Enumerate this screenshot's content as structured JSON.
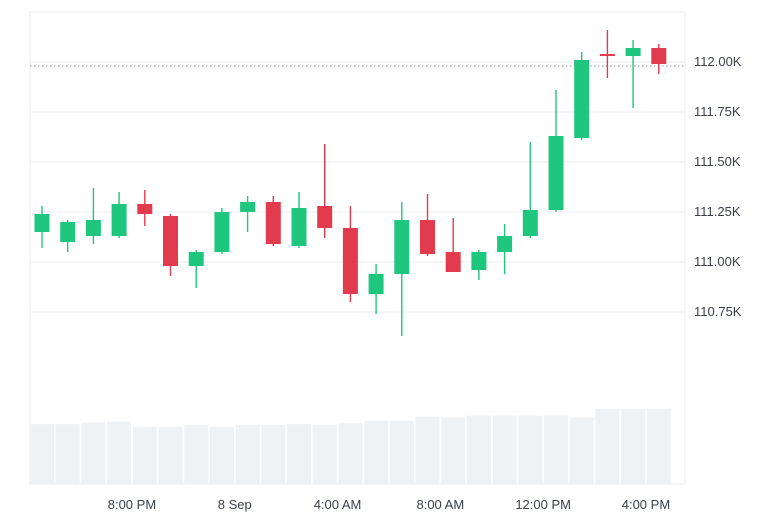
{
  "chart_data": {
    "type": "candlestick",
    "price_unit_suffix": "K",
    "y_ticks": [
      110.75,
      111.0,
      111.25,
      111.5,
      111.75,
      112.0
    ],
    "y_tick_labels": [
      "110.75K",
      "111.00K",
      "111.25K",
      "111.50K",
      "111.75K",
      "112.00K"
    ],
    "ylim": [
      110.3,
      112.25
    ],
    "x_tick_labels": [
      "8:00 PM",
      "8 Sep",
      "4:00 AM",
      "8:00 AM",
      "12:00 PM",
      "4:00 PM"
    ],
    "x_tick_candle_index": [
      3.5,
      7.5,
      11.5,
      15.5,
      19.5,
      23.5
    ],
    "reference_price": 111.98,
    "colors": {
      "up": "#1fc77e",
      "down": "#e23b4e",
      "volume": "#eef2f5",
      "grid": "#eceef1",
      "reference_line": "#8c939c"
    },
    "candles": [
      {
        "o": 111.15,
        "h": 111.28,
        "l": 111.07,
        "c": 111.24
      },
      {
        "o": 111.1,
        "h": 111.21,
        "l": 111.05,
        "c": 111.2
      },
      {
        "o": 111.13,
        "h": 111.37,
        "l": 111.09,
        "c": 111.21
      },
      {
        "o": 111.13,
        "h": 111.35,
        "l": 111.12,
        "c": 111.29
      },
      {
        "o": 111.29,
        "h": 111.36,
        "l": 111.18,
        "c": 111.24
      },
      {
        "o": 111.23,
        "h": 111.24,
        "l": 110.93,
        "c": 110.98
      },
      {
        "o": 110.98,
        "h": 111.06,
        "l": 110.87,
        "c": 111.05
      },
      {
        "o": 111.05,
        "h": 111.27,
        "l": 111.04,
        "c": 111.25
      },
      {
        "o": 111.25,
        "h": 111.33,
        "l": 111.15,
        "c": 111.3
      },
      {
        "o": 111.3,
        "h": 111.33,
        "l": 111.08,
        "c": 111.09
      },
      {
        "o": 111.08,
        "h": 111.35,
        "l": 111.07,
        "c": 111.27
      },
      {
        "o": 111.28,
        "h": 111.59,
        "l": 111.12,
        "c": 111.17
      },
      {
        "o": 111.17,
        "h": 111.28,
        "l": 110.8,
        "c": 110.84
      },
      {
        "o": 110.84,
        "h": 110.99,
        "l": 110.74,
        "c": 110.94
      },
      {
        "o": 110.94,
        "h": 111.3,
        "l": 110.63,
        "c": 111.21
      },
      {
        "o": 111.21,
        "h": 111.34,
        "l": 111.03,
        "c": 111.04
      },
      {
        "o": 111.05,
        "h": 111.22,
        "l": 110.95,
        "c": 110.95
      },
      {
        "o": 110.96,
        "h": 111.06,
        "l": 110.91,
        "c": 111.05
      },
      {
        "o": 111.05,
        "h": 111.19,
        "l": 110.94,
        "c": 111.13
      },
      {
        "o": 111.13,
        "h": 111.6,
        "l": 111.12,
        "c": 111.26
      },
      {
        "o": 111.26,
        "h": 111.86,
        "l": 111.25,
        "c": 111.63
      },
      {
        "o": 111.62,
        "h": 112.05,
        "l": 111.61,
        "c": 112.01
      },
      {
        "o": 112.04,
        "h": 112.16,
        "l": 111.92,
        "c": 112.03
      },
      {
        "o": 112.03,
        "h": 112.11,
        "l": 111.77,
        "c": 112.07
      },
      {
        "o": 112.07,
        "h": 112.09,
        "l": 111.94,
        "c": 111.99
      }
    ],
    "volume": [
      70,
      70,
      72,
      73,
      67,
      67,
      69,
      67,
      69,
      69,
      70,
      69,
      71,
      74,
      74,
      79,
      78,
      80,
      80,
      80,
      80,
      78,
      88,
      88,
      88
    ],
    "volume_ylim": [
      0,
      110
    ]
  }
}
